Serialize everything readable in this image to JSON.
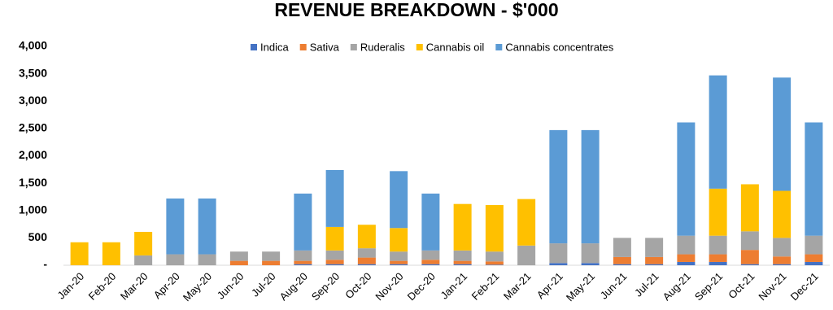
{
  "chart_data": {
    "type": "stacked_bar",
    "title": "REVENUE BREAKDOWN - $'000",
    "categories": [
      "Jan-20",
      "Feb-20",
      "Mar-20",
      "Apr-20",
      "May-20",
      "Jun-20",
      "Jul-20",
      "Aug-20",
      "Sep-20",
      "Oct-20",
      "Nov-20",
      "Dec-20",
      "Jan-21",
      "Feb-21",
      "Mar-21",
      "Apr-21",
      "May-21",
      "Jun-21",
      "Jul-21",
      "Aug-21",
      "Sep-21",
      "Oct-21",
      "Nov-21",
      "Dec-21"
    ],
    "series": [
      {
        "name": "Indica",
        "color": "#4472c4",
        "values": [
          0,
          0,
          0,
          0,
          0,
          0,
          0,
          20,
          20,
          20,
          20,
          20,
          20,
          10,
          0,
          40,
          40,
          20,
          20,
          60,
          60,
          20,
          20,
          60
        ]
      },
      {
        "name": "Sativa",
        "color": "#ed7d31",
        "values": [
          0,
          0,
          0,
          0,
          0,
          80,
          80,
          60,
          80,
          120,
          60,
          80,
          60,
          60,
          0,
          0,
          0,
          130,
          130,
          140,
          140,
          260,
          140,
          140
        ]
      },
      {
        "name": "Ruderalis",
        "color": "#a5a5a5",
        "values": [
          0,
          0,
          180,
          200,
          200,
          170,
          170,
          190,
          170,
          170,
          170,
          170,
          190,
          180,
          360,
          360,
          360,
          350,
          350,
          340,
          340,
          340,
          340,
          340
        ]
      },
      {
        "name": "Cannabis oil",
        "color": "#ffc000",
        "values": [
          420,
          420,
          430,
          0,
          0,
          0,
          0,
          0,
          430,
          430,
          430,
          0,
          850,
          850,
          850,
          0,
          0,
          0,
          0,
          0,
          860,
          860,
          860,
          0
        ]
      },
      {
        "name": "Cannabis concentrates",
        "color": "#5b9bd5",
        "values": [
          0,
          0,
          0,
          1020,
          1020,
          0,
          0,
          1040,
          1040,
          0,
          1040,
          1040,
          0,
          0,
          0,
          2070,
          2070,
          0,
          0,
          2070,
          2070,
          0,
          2070,
          2070
        ]
      }
    ],
    "ylim": [
      0,
      4000
    ],
    "yticks": [
      {
        "value": 0,
        "label": "-"
      },
      500,
      {
        "value": 1000,
        "label": "1,000"
      },
      {
        "value": 1500,
        "label": "1,500"
      },
      {
        "value": 2000,
        "label": "2,000"
      },
      {
        "value": 2500,
        "label": "2,500"
      },
      {
        "value": 3000,
        "label": "3,000"
      },
      {
        "value": 3500,
        "label": "3,500"
      },
      {
        "value": 4000,
        "label": "4,000"
      }
    ],
    "grid": false,
    "legend": "top"
  }
}
